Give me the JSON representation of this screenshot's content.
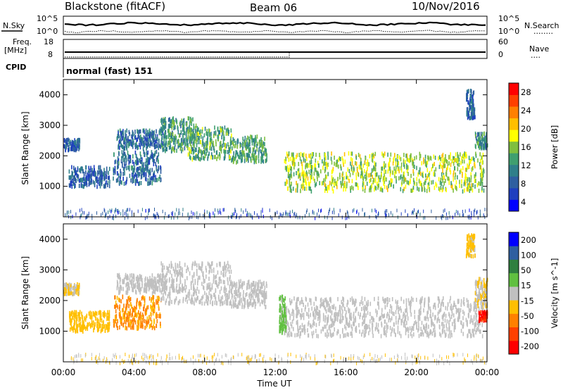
{
  "header": {
    "radar": "Blackstone (fitACF)",
    "beam": "Beam 06",
    "date": "10/Nov/2016"
  },
  "status_panels": {
    "nsky_label": "N.Sky",
    "nsearch_label": "N.Search",
    "nsearch_dots": "........",
    "freq_label": "Freq.",
    "freq_unit": "[MHz]",
    "nave_label": "Nave",
    "nave_dots": "....",
    "cpid_label": "CPID",
    "noise_ticks": [
      "10^5",
      "10^0"
    ],
    "freq_ticks": [
      "18",
      "8"
    ],
    "nave_ticks": [
      "60",
      "0"
    ],
    "cpid_text": "normal (fast) 151",
    "nave_step": {
      "from": 0,
      "to": 20,
      "at_hour": 12.8
    }
  },
  "x_axis": {
    "label": "Time UT",
    "ticks": [
      "00:00",
      "04:00",
      "08:00",
      "12:00",
      "16:00",
      "20:00",
      "00:00"
    ],
    "tick_hours": [
      0,
      4,
      8,
      12,
      16,
      20,
      24
    ]
  },
  "chart_data": [
    {
      "type": "heatmap",
      "name": "power",
      "ylabel": "Slant Range [km]",
      "xlim": [
        0,
        24
      ],
      "ylim": [
        0,
        4500
      ],
      "y_ticks": [
        1000,
        2000,
        3000,
        4000
      ],
      "colorbar": {
        "label": "Power [dB]",
        "ticks": [
          "28",
          "24",
          "20",
          "16",
          "12",
          "8",
          "4"
        ],
        "range": [
          0,
          30
        ],
        "colors": [
          "#0000ff",
          "#1f3fbf",
          "#2f5fa0",
          "#2f7f8a",
          "#3f9f6f",
          "#7fbf3f",
          "#ffff00",
          "#ffbf00",
          "#ff8000",
          "#ff4000",
          "#ff0000"
        ]
      },
      "echo_bands": [
        {
          "t0": 0.0,
          "t1": 0.9,
          "r_lo": 2250,
          "r_hi": 2600,
          "level": 6
        },
        {
          "t0": 0.3,
          "t1": 2.6,
          "r_lo": 1050,
          "r_hi": 1700,
          "level": 6
        },
        {
          "t0": 2.8,
          "t1": 5.5,
          "r_lo": 1150,
          "r_hi": 2200,
          "level": 7
        },
        {
          "t0": 3.0,
          "t1": 5.8,
          "r_lo": 2300,
          "r_hi": 2900,
          "level": 7
        },
        {
          "t0": 5.5,
          "t1": 7.5,
          "r_lo": 2200,
          "r_hi": 3300,
          "level": 11
        },
        {
          "t0": 7.0,
          "t1": 9.5,
          "r_lo": 1950,
          "r_hi": 3000,
          "level": 13
        },
        {
          "t0": 9.5,
          "t1": 11.5,
          "r_lo": 1850,
          "r_hi": 2700,
          "level": 12
        },
        {
          "t0": 12.5,
          "t1": 23.8,
          "r_lo": 900,
          "r_hi": 2150,
          "level": 16
        },
        {
          "t0": 23.3,
          "t1": 24.0,
          "r_lo": 2300,
          "r_hi": 2800,
          "level": 10
        },
        {
          "t0": 22.8,
          "t1": 23.3,
          "r_lo": 3300,
          "r_hi": 4200,
          "level": 6
        }
      ],
      "ground_clutter": {
        "t0": 0.0,
        "t1": 24.0,
        "r_lo": 0,
        "r_hi": 300,
        "level": 5
      }
    },
    {
      "type": "heatmap",
      "name": "velocity",
      "ylabel": "Slant Range [km]",
      "xlim": [
        0,
        24
      ],
      "ylim": [
        0,
        4500
      ],
      "y_ticks": [
        1000,
        2000,
        3000,
        4000
      ],
      "colorbar": {
        "label": "Velocity [m s^-1]",
        "ticks": [
          "200",
          "100",
          "50",
          "15",
          "-15",
          "-50",
          "-100",
          "-200"
        ],
        "range": [
          -250,
          250
        ],
        "colors": [
          "#ff0000",
          "#ff4000",
          "#ff8000",
          "#ffbf00",
          "#c0c0c0",
          "#60c040",
          "#2f7f3f",
          "#2f5fa0",
          "#0000ff"
        ]
      },
      "echo_bands": [
        {
          "t0": 0.0,
          "t1": 0.9,
          "r_lo": 2250,
          "r_hi": 2600,
          "velocity": -30
        },
        {
          "t0": 0.3,
          "t1": 2.6,
          "r_lo": 1050,
          "r_hi": 1700,
          "velocity": -60
        },
        {
          "t0": 2.8,
          "t1": 5.5,
          "r_lo": 1150,
          "r_hi": 2200,
          "velocity": -90
        },
        {
          "t0": 3.0,
          "t1": 5.8,
          "r_lo": 2300,
          "r_hi": 2900,
          "velocity": 0
        },
        {
          "t0": 5.5,
          "t1": 9.5,
          "r_lo": 1950,
          "r_hi": 3300,
          "velocity": 0
        },
        {
          "t0": 9.5,
          "t1": 11.5,
          "r_lo": 1850,
          "r_hi": 2700,
          "velocity": 0
        },
        {
          "t0": 12.2,
          "t1": 12.6,
          "r_lo": 1000,
          "r_hi": 2200,
          "velocity": 40
        },
        {
          "t0": 12.6,
          "t1": 23.8,
          "r_lo": 900,
          "r_hi": 2150,
          "velocity": 0
        },
        {
          "t0": 23.3,
          "t1": 24.0,
          "r_lo": 1850,
          "r_hi": 2800,
          "velocity": -30
        },
        {
          "t0": 23.5,
          "t1": 24.0,
          "r_lo": 1400,
          "r_hi": 1700,
          "velocity": -200
        },
        {
          "t0": 22.8,
          "t1": 23.3,
          "r_lo": 3500,
          "r_hi": 4200,
          "velocity": -40
        }
      ],
      "ground_clutter": {
        "t0": 0.0,
        "t1": 24.0,
        "r_lo": 0,
        "r_hi": 300,
        "velocity": -25
      }
    }
  ]
}
